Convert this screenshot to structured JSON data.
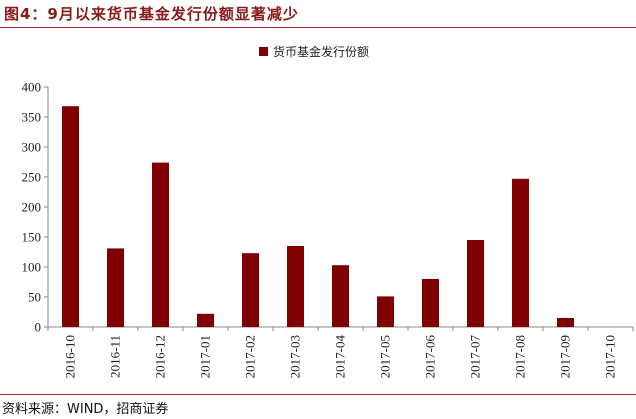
{
  "figure": {
    "title": "图4：9月以来货币基金发行份额显著减少",
    "source": "资料来源：WIND，招商证券"
  },
  "chart_data": {
    "type": "bar",
    "title": "",
    "xlabel": "",
    "ylabel": "",
    "categories": [
      "2016-10",
      "2016-11",
      "2016-12",
      "2017-01",
      "2017-02",
      "2017-03",
      "2017-04",
      "2017-05",
      "2017-06",
      "2017-07",
      "2017-08",
      "2017-09",
      "2017-10"
    ],
    "series": [
      {
        "name": "货币基金发行份额",
        "color": "#7f0000",
        "values": [
          368,
          131,
          274,
          22,
          123,
          135,
          103,
          51,
          80,
          145,
          247,
          15,
          0
        ]
      }
    ],
    "ylim": [
      0,
      400
    ],
    "yticks": [
      0,
      50,
      100,
      150,
      200,
      250,
      300,
      350,
      400
    ],
    "grid": false,
    "legend_position": "top-center"
  }
}
